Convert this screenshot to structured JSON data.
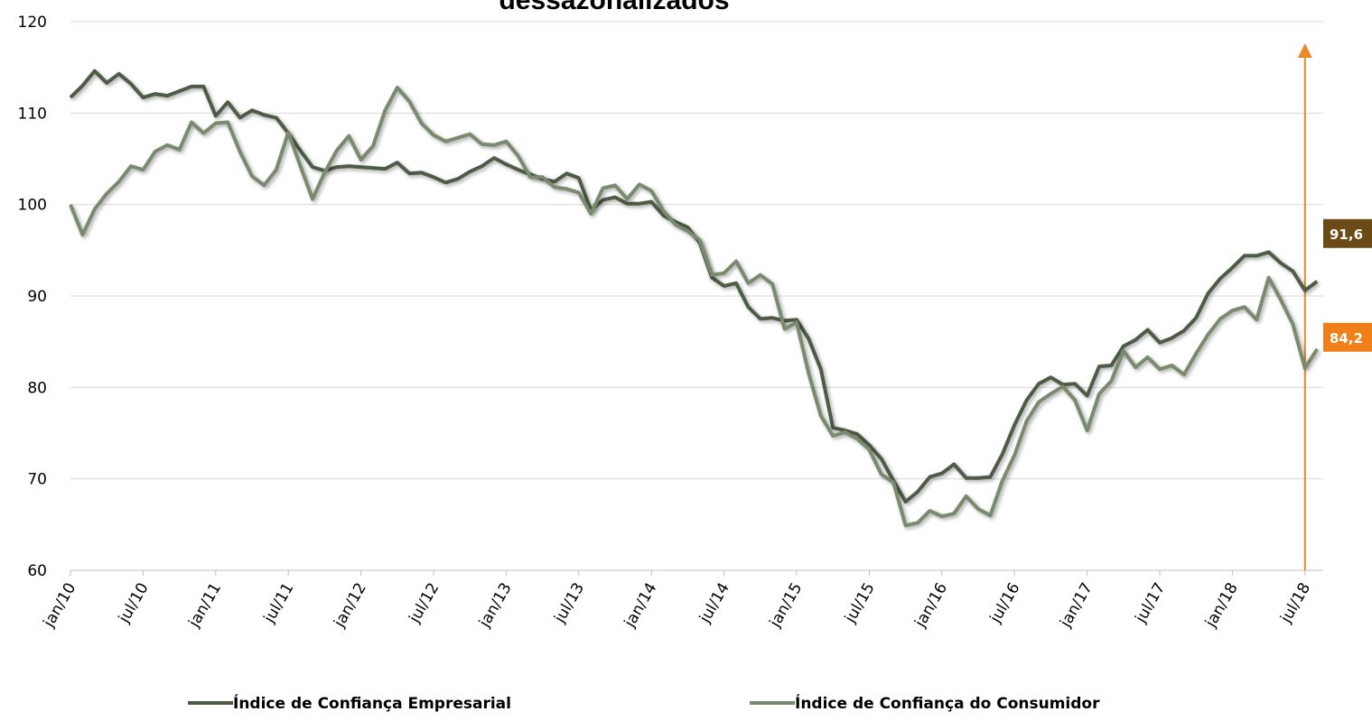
{
  "chart_data": {
    "type": "line",
    "title": "dessazonalizados",
    "categories": [
      "jan/10",
      null,
      null,
      null,
      null,
      null,
      "jul/10",
      null,
      null,
      null,
      null,
      null,
      "jan/11",
      null,
      null,
      null,
      null,
      null,
      "jul/11",
      null,
      null,
      null,
      null,
      null,
      "jan/12",
      null,
      null,
      null,
      null,
      null,
      "jul/12",
      null,
      null,
      null,
      null,
      null,
      "jan/13",
      null,
      null,
      null,
      null,
      null,
      "jul/13",
      null,
      null,
      null,
      null,
      null,
      "jan/14",
      null,
      null,
      null,
      null,
      null,
      "jul/14",
      null,
      null,
      null,
      null,
      null,
      "jan/15",
      null,
      null,
      null,
      null,
      null,
      "jul/15",
      null,
      null,
      null,
      null,
      null,
      "jan/16",
      null,
      null,
      null,
      null,
      null,
      "jul/16",
      null,
      null,
      null,
      null,
      null,
      "jan/17",
      null,
      null,
      null,
      null,
      null,
      "jul/17",
      null,
      null,
      null,
      null,
      null,
      "jan/18",
      null,
      null,
      null,
      null,
      null,
      "jul/18",
      null
    ],
    "series": [
      {
        "name": "Índice de Confiança Empresarial",
        "color": "#4e5b46",
        "values": [
          111.7,
          113,
          114.6,
          113.3,
          114.3,
          113.2,
          111.7,
          112.1,
          111.9,
          112.4,
          112.9,
          112.9,
          109.7,
          111.2,
          109.5,
          110.3,
          109.8,
          109.5,
          107.8,
          105.9,
          104.1,
          103.7,
          104.1,
          104.2,
          104.1,
          104,
          103.9,
          104.6,
          103.4,
          103.5,
          103,
          102.4,
          102.8,
          103.6,
          104.2,
          105.1,
          104.4,
          103.8,
          103.3,
          102.8,
          102.5,
          103.4,
          102.9,
          99.4,
          100.5,
          100.8,
          100.1,
          100.1,
          100.3,
          98.8,
          98.1,
          97.5,
          95.8,
          92,
          91.1,
          91.4,
          88.8,
          87.5,
          87.6,
          87.3,
          87.4,
          85.3,
          82,
          75.6,
          75.3,
          74.9,
          73.7,
          72.2,
          69.8,
          67.5,
          68.6,
          70.2,
          70.6,
          71.6,
          70.1,
          70.1,
          70.2,
          72.7,
          75.9,
          78.6,
          80.4,
          81.1,
          80.3,
          80.4,
          79.1,
          82.3,
          82.4,
          84.5,
          85.2,
          86.3,
          84.9,
          85.4,
          86.2,
          87.6,
          90.3,
          91.9,
          93.1,
          94.4,
          94.4,
          94.8,
          93.6,
          92.7,
          90.6,
          91.6
        ],
        "value_labels": [
          null,
          null,
          null,
          null,
          null,
          null,
          null,
          null,
          null,
          null,
          null,
          null,
          null,
          null,
          null,
          null,
          null,
          null,
          null,
          null,
          null,
          null,
          null,
          null,
          null,
          null,
          null,
          null,
          null,
          null,
          null,
          null,
          null,
          null,
          null,
          null,
          null,
          null,
          null,
          null,
          null,
          null,
          null,
          null,
          null,
          null,
          null,
          null,
          null,
          null,
          null,
          null,
          null,
          null,
          null,
          null,
          null,
          null,
          null,
          null,
          null,
          null,
          null,
          null,
          null,
          null,
          null,
          null,
          null,
          null,
          null,
          null,
          null,
          null,
          null,
          null,
          null,
          null,
          null,
          null,
          null,
          null,
          null,
          null,
          null,
          null,
          null,
          null,
          null,
          null,
          null,
          null,
          null,
          null,
          null,
          null,
          null,
          null,
          null,
          null,
          null,
          null,
          null,
          "91,6"
        ],
        "label_color": "#6b4a16"
      },
      {
        "name": "Índice de Confiança do Consumidor",
        "color": "#7a8a6e",
        "values": [
          100,
          96.7,
          99.5,
          101.2,
          102.5,
          104.2,
          103.8,
          105.8,
          106.5,
          106,
          109,
          107.8,
          108.9,
          109,
          105.8,
          103.1,
          102.1,
          103.8,
          107.9,
          104.2,
          100.6,
          103.5,
          105.9,
          107.5,
          104.9,
          106.4,
          110.3,
          112.8,
          111.3,
          108.9,
          107.6,
          106.9,
          107.3,
          107.7,
          106.6,
          106.5,
          106.9,
          105.3,
          103,
          103,
          101.9,
          101.7,
          101.3,
          99,
          101.8,
          102.1,
          100.6,
          102.2,
          101.5,
          99.3,
          97.8,
          97.1,
          96.1,
          92.3,
          92.5,
          93.8,
          91.4,
          92.3,
          91.3,
          86.4,
          87.1,
          81.5,
          76.9,
          74.7,
          75.1,
          74.4,
          73.2,
          70.5,
          69.6,
          64.9,
          65.2,
          66.5,
          65.9,
          66.2,
          68.1,
          66.7,
          66,
          69.8,
          72.6,
          76.3,
          78.4,
          79.3,
          80.1,
          78.6,
          75.3,
          79.3,
          80.7,
          84,
          82.2,
          83.3,
          82,
          82.4,
          81.4,
          83.7,
          85.8,
          87.5,
          88.4,
          88.8,
          87.4,
          92,
          89.6,
          86.9,
          82.1,
          84.2
        ],
        "value_labels": [
          null,
          null,
          null,
          null,
          null,
          null,
          null,
          null,
          null,
          null,
          null,
          null,
          null,
          null,
          null,
          null,
          null,
          null,
          null,
          null,
          null,
          null,
          null,
          null,
          null,
          null,
          null,
          null,
          null,
          null,
          null,
          null,
          null,
          null,
          null,
          null,
          null,
          null,
          null,
          null,
          null,
          null,
          null,
          null,
          null,
          null,
          null,
          null,
          null,
          null,
          null,
          null,
          null,
          null,
          null,
          null,
          null,
          null,
          null,
          null,
          null,
          null,
          null,
          null,
          null,
          null,
          null,
          null,
          null,
          null,
          null,
          null,
          null,
          null,
          null,
          null,
          null,
          null,
          null,
          null,
          null,
          null,
          null,
          null,
          null,
          null,
          null,
          null,
          null,
          null,
          null,
          null,
          null,
          null,
          null,
          null,
          null,
          null,
          null,
          null,
          null,
          null,
          null,
          "84,2"
        ],
        "label_color": "#f07f19"
      }
    ],
    "ylim": [
      60,
      120
    ],
    "yticks": [
      60,
      70,
      80,
      90,
      100,
      110,
      120
    ],
    "grid": true,
    "annotation_color": "#e8892a",
    "legend": "bottom"
  }
}
